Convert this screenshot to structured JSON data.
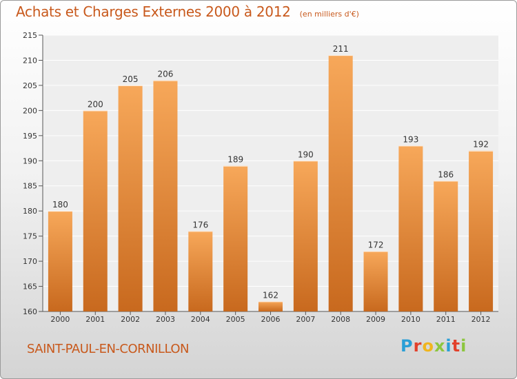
{
  "chart_data": {
    "type": "bar",
    "title": "Achats et Charges Externes 2000 à 2012",
    "subtitle": "(en milliers d'€)",
    "categories": [
      "2000",
      "2001",
      "2002",
      "2003",
      "2004",
      "2005",
      "2006",
      "2007",
      "2008",
      "2009",
      "2010",
      "2011",
      "2012"
    ],
    "values": [
      180,
      200,
      205,
      206,
      176,
      189,
      162,
      190,
      211,
      172,
      193,
      186,
      192
    ],
    "ylim": [
      160,
      215
    ],
    "yticks": [
      160,
      165,
      170,
      175,
      180,
      185,
      190,
      195,
      200,
      205,
      210,
      215
    ],
    "grid": true,
    "bar_color_top": "#f7a85a",
    "bar_color_bottom": "#c8691e"
  },
  "commune": "SAINT-PAUL-EN-CORNILLON",
  "logo": {
    "text": "Proxiti",
    "letter_colors": [
      "#2a9fd6",
      "#e2412b",
      "#f0b51e",
      "#8cc63f",
      "#2a9fd6",
      "#e2412b",
      "#8cc63f"
    ]
  },
  "accent_color": "#c8591c"
}
